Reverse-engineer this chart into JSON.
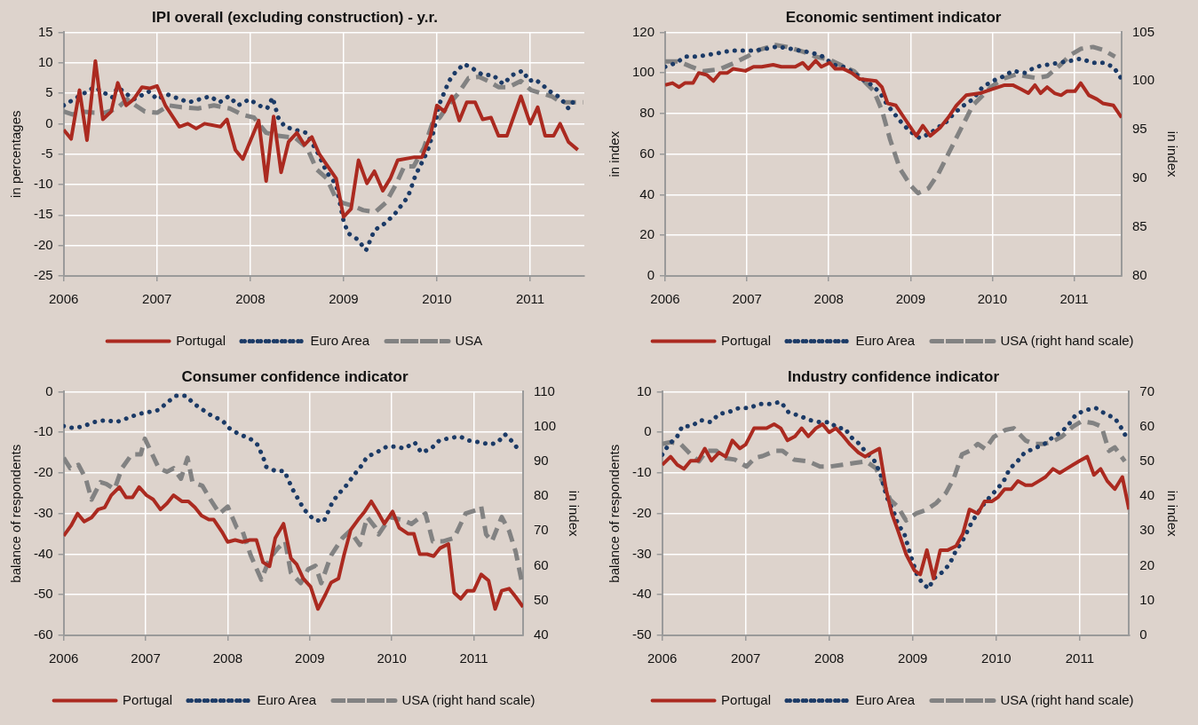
{
  "chart_data": [
    {
      "type": "line",
      "title": "IPI overall (excluding construction) - y.r.",
      "ylabel": "in percentages",
      "xlim": [
        2006,
        2011.58
      ],
      "xticks": [
        2006,
        2007,
        2008,
        2009,
        2010,
        2011
      ],
      "ylim": [
        -25,
        15
      ],
      "yticks": [
        -25,
        -20,
        -15,
        -10,
        -5,
        0,
        5,
        10,
        15
      ],
      "grid": true,
      "legend": "bottom",
      "series": [
        {
          "name": "Portugal",
          "color": "#ab2a20",
          "line_style": "solid",
          "x": [
            2006.0,
            2006.08,
            2006.17,
            2006.25,
            2006.34,
            2006.42,
            2006.51,
            2006.58,
            2006.67,
            2006.75,
            2006.84,
            2006.92,
            2007.0,
            2007.09,
            2007.24,
            2007.33,
            2007.42,
            2007.51,
            2007.68,
            2007.75,
            2007.84,
            2007.92,
            2008.09,
            2008.17,
            2008.25,
            2008.33,
            2008.41,
            2008.5,
            2008.58,
            2008.66,
            2008.74,
            2008.83,
            2008.92,
            2009.0,
            2009.08,
            2009.16,
            2009.25,
            2009.33,
            2009.42,
            2009.5,
            2009.58,
            2009.76,
            2009.84,
            2009.93,
            2010.0,
            2010.08,
            2010.16,
            2010.24,
            2010.32,
            2010.41,
            2010.49,
            2010.58,
            2010.66,
            2010.75,
            2010.9,
            2011.0,
            2011.08,
            2011.16,
            2011.25,
            2011.32,
            2011.41,
            2011.51
          ],
          "values": [
            -1,
            -2.5,
            5.5,
            -2.7,
            10.3,
            0.7,
            2,
            6.7,
            3,
            4,
            6,
            5.8,
            6.2,
            3,
            -0.5,
            0,
            -0.8,
            0,
            -0.5,
            0.7,
            -4.3,
            -5.8,
            0.5,
            -9.4,
            1.2,
            -8,
            -3,
            -1.5,
            -3.5,
            -2.2,
            -5,
            -7,
            -9,
            -15.3,
            -14,
            -6,
            -9.8,
            -7.8,
            -11,
            -9,
            -6,
            -5.5,
            -5.5,
            -2,
            3,
            2,
            4.5,
            0.5,
            3.5,
            3.5,
            0.7,
            1,
            -2,
            -2,
            4.5,
            0,
            2.7,
            -2,
            -2,
            0,
            -3,
            -4.3
          ]
        },
        {
          "name": "Euro Area",
          "color": "#1b3a66",
          "line_style": "dotted",
          "x": [
            2006.0,
            2006.33,
            2006.52,
            2006.58,
            2006.75,
            2006.92,
            2007.0,
            2007.11,
            2007.34,
            2007.57,
            2007.67,
            2007.77,
            2007.87,
            2007.99,
            2008.09,
            2008.18,
            2008.24,
            2008.3,
            2008.37,
            2008.48,
            2008.6,
            2008.73,
            2008.82,
            2008.92,
            2009.0,
            2009.05,
            2009.15,
            2009.24,
            2009.33,
            2009.43,
            2009.54,
            2009.69,
            2009.77,
            2009.9,
            2009.97,
            2010.02,
            2010.13,
            2010.2,
            2010.29,
            2010.39,
            2010.49,
            2010.6,
            2010.71,
            2010.81,
            2010.92,
            2010.99,
            2011.05,
            2011.12,
            2011.21,
            2011.32,
            2011.41,
            2011.48
          ],
          "values": [
            3,
            6,
            4.3,
            6,
            4,
            5.3,
            4,
            4.8,
            3.5,
            4.5,
            3.5,
            4.5,
            3,
            4,
            3,
            2.5,
            4.3,
            1,
            -0.5,
            -1,
            -1.5,
            -5,
            -8,
            -10,
            -16,
            -18,
            -19,
            -20.8,
            -17.5,
            -16.5,
            -15,
            -12,
            -8.5,
            -4.5,
            -1,
            3,
            7,
            8.5,
            9.8,
            9,
            8,
            8,
            6.5,
            8,
            8.7,
            7,
            7.3,
            6.5,
            5.3,
            4.3,
            2.5,
            4
          ]
        },
        {
          "name": "USA",
          "color": "#828282",
          "line_style": "dashed",
          "x": [
            2006.0,
            2006.1,
            2006.18,
            2006.33,
            2006.44,
            2006.57,
            2006.68,
            2006.77,
            2006.87,
            2007.0,
            2007.13,
            2007.26,
            2007.44,
            2007.61,
            2007.78,
            2007.91,
            2008.04,
            2008.17,
            2008.3,
            2008.48,
            2008.61,
            2008.71,
            2008.82,
            2008.91,
            2008.99,
            2009.1,
            2009.21,
            2009.34,
            2009.45,
            2009.56,
            2009.65,
            2009.75,
            2009.86,
            2009.95,
            2010.03,
            2010.12,
            2010.23,
            2010.34,
            2010.45,
            2010.55,
            2010.66,
            2010.77,
            2010.9,
            2011.01,
            2011.12,
            2011.23,
            2011.33,
            2011.46,
            2011.57
          ],
          "values": [
            2,
            1.5,
            2,
            1.8,
            1.8,
            2.5,
            4,
            3,
            2,
            1.8,
            3,
            2.7,
            2.5,
            3,
            2.5,
            1.5,
            1,
            -1.5,
            -2,
            -2.3,
            -4,
            -7.5,
            -9,
            -12,
            -13,
            -13.5,
            -14.2,
            -14.5,
            -13,
            -10,
            -7,
            -7,
            -4,
            0,
            1,
            3,
            5,
            7.5,
            7.7,
            7,
            6,
            6,
            7,
            5.5,
            5,
            4.5,
            3.5,
            3.5,
            3.5
          ]
        }
      ]
    },
    {
      "type": "line",
      "title": "Economic sentiment indicator",
      "ylabel": "in index",
      "y2label": "in index",
      "xlim": [
        2006,
        2011.58
      ],
      "xticks": [
        2006,
        2007,
        2008,
        2009,
        2010,
        2011
      ],
      "ylim": [
        0,
        120
      ],
      "yticks": [
        0,
        20,
        40,
        60,
        80,
        100,
        120
      ],
      "y2lim": [
        80,
        105
      ],
      "y2ticks": [
        80,
        85,
        90,
        95,
        100,
        105
      ],
      "grid": true,
      "legend": "bottom",
      "series": [
        {
          "name": "Portugal",
          "color": "#ab2a20",
          "line_style": "solid",
          "x": [
            2006.0,
            2006.09,
            2006.17,
            2006.24,
            2006.34,
            2006.41,
            2006.51,
            2006.59,
            2006.67,
            2006.76,
            2006.83,
            2006.98,
            2007.08,
            2007.18,
            2007.32,
            2007.42,
            2007.59,
            2007.68,
            2007.75,
            2007.84,
            2007.91,
            2008.01,
            2008.08,
            2008.18,
            2008.28,
            2008.38,
            2008.58,
            2008.65,
            2008.72,
            2008.82,
            2008.92,
            2009.07,
            2009.15,
            2009.24,
            2009.36,
            2009.46,
            2009.56,
            2009.68,
            2009.85,
            2010.0,
            2010.15,
            2010.25,
            2010.35,
            2010.44,
            2010.52,
            2010.59,
            2010.67,
            2010.76,
            2010.84,
            2010.91,
            2011.01,
            2011.08,
            2011.18,
            2011.28,
            2011.35,
            2011.48,
            2011.58
          ],
          "values": [
            94,
            95,
            93,
            95,
            95,
            100,
            99,
            96,
            100,
            100,
            102,
            101,
            103,
            103,
            104,
            103,
            103,
            105,
            102,
            106,
            103,
            105,
            102,
            102,
            100,
            97,
            96,
            93,
            85,
            84,
            78,
            69,
            74,
            69,
            73,
            78,
            84,
            89,
            90,
            92,
            94,
            94,
            92,
            90,
            94,
            90,
            93,
            90,
            89,
            91,
            91,
            95,
            89,
            87,
            85,
            84,
            78
          ]
        },
        {
          "name": "Euro Area",
          "color": "#1b3a66",
          "line_style": "dotted",
          "x": [
            2006.0,
            2006.14,
            2006.24,
            2006.39,
            2006.54,
            2006.68,
            2006.81,
            2006.95,
            2007.1,
            2007.25,
            2007.37,
            2007.52,
            2007.64,
            2007.79,
            2007.93,
            2008.06,
            2008.18,
            2008.31,
            2008.4,
            2008.53,
            2008.63,
            2008.72,
            2008.82,
            2008.9,
            2009.0,
            2009.11,
            2009.23,
            2009.33,
            2009.44,
            2009.53,
            2009.65,
            2009.76,
            2009.88,
            2010.0,
            2010.12,
            2010.25,
            2010.4,
            2010.53,
            2010.67,
            2010.81,
            2010.96,
            2011.08,
            2011.23,
            2011.35,
            2011.48,
            2011.58
          ],
          "values": [
            103,
            105,
            108,
            108,
            109,
            110,
            111,
            111,
            111,
            112,
            113,
            112,
            111,
            110,
            108,
            104,
            103,
            100,
            97,
            94,
            90,
            84,
            79,
            75,
            71,
            68,
            70,
            73,
            76,
            80,
            84,
            87,
            93,
            96,
            98,
            101,
            100,
            103,
            104,
            105,
            106,
            107,
            105,
            105,
            103,
            97
          ]
        },
        {
          "name": "USA (right hand scale)",
          "color": "#828282",
          "line_style": "dashed",
          "axis": "y2",
          "x": [
            2006.0,
            2006.17,
            2006.31,
            2006.46,
            2006.66,
            2006.83,
            2007.0,
            2007.15,
            2007.35,
            2007.49,
            2007.69,
            2007.84,
            2008.01,
            2008.18,
            2008.31,
            2008.43,
            2008.55,
            2008.65,
            2008.75,
            2008.87,
            2009.0,
            2009.09,
            2009.22,
            2009.34,
            2009.46,
            2009.61,
            2009.76,
            2009.88,
            2010.0,
            2010.15,
            2010.3,
            2010.4,
            2010.54,
            2010.67,
            2010.81,
            2010.96,
            2011.08,
            2011.23,
            2011.35,
            2011.5
          ],
          "values": [
            102,
            102,
            101.5,
            101,
            101.2,
            101.8,
            102.5,
            103.2,
            103.7,
            103.5,
            103,
            102.5,
            102.2,
            101.5,
            101,
            100,
            99,
            97,
            94,
            91,
            89.3,
            88.5,
            89,
            90.5,
            92.5,
            95,
            97.5,
            98.5,
            99.5,
            100.3,
            100.7,
            100.5,
            100.3,
            100.5,
            101.5,
            102.7,
            103.3,
            103.5,
            103.2,
            102.5
          ]
        }
      ]
    },
    {
      "type": "line",
      "title": "Consumer confidence indicator",
      "ylabel": "balance of respondents",
      "y2label": "in index",
      "xlim": [
        2006,
        2011.6
      ],
      "xticks": [
        2006,
        2007,
        2008,
        2009,
        2010,
        2011
      ],
      "ylim": [
        -60,
        0
      ],
      "yticks": [
        -60,
        -50,
        -40,
        -30,
        -20,
        -10,
        0
      ],
      "y2lim": [
        40,
        110
      ],
      "y2ticks": [
        40,
        50,
        60,
        70,
        80,
        90,
        100,
        110
      ],
      "grid": true,
      "legend": "bottom",
      "series": [
        {
          "name": "Portugal",
          "color": "#ab2a20",
          "line_style": "solid",
          "x": [
            2006.0,
            2006.09,
            2006.17,
            2006.25,
            2006.34,
            2006.42,
            2006.5,
            2006.58,
            2006.68,
            2006.76,
            2006.84,
            2006.92,
            2007.01,
            2007.09,
            2007.18,
            2007.26,
            2007.34,
            2007.44,
            2007.52,
            2007.6,
            2007.68,
            2007.77,
            2007.83,
            2007.93,
            2008.0,
            2008.09,
            2008.18,
            2008.27,
            2008.35,
            2008.43,
            2008.51,
            2008.58,
            2008.68,
            2008.77,
            2008.84,
            2008.92,
            2009.01,
            2009.1,
            2009.19,
            2009.26,
            2009.35,
            2009.42,
            2009.5,
            2009.59,
            2009.67,
            2009.75,
            2009.84,
            2009.91,
            2010.01,
            2010.09,
            2010.2,
            2010.27,
            2010.34,
            2010.43,
            2010.51,
            2010.59,
            2010.69,
            2010.76,
            2010.84,
            2010.92,
            2011.0,
            2011.09,
            2011.18,
            2011.26,
            2011.34,
            2011.43,
            2011.51,
            2011.6
          ],
          "values": [
            -35.5,
            -33,
            -30,
            -32,
            -31,
            -29,
            -28.5,
            -25.5,
            -23.5,
            -26,
            -26,
            -23.5,
            -25.5,
            -26.5,
            -29,
            -27.5,
            -25.5,
            -27,
            -27,
            -28.5,
            -30.5,
            -31.5,
            -31.5,
            -34.5,
            -37,
            -36.5,
            -37,
            -36.5,
            -36.5,
            -42,
            -43,
            -36,
            -32.5,
            -41,
            -42.5,
            -46,
            -48,
            -53.5,
            -50,
            -47,
            -46,
            -40,
            -34,
            -31.5,
            -29.5,
            -27,
            -30,
            -32.5,
            -29.5,
            -33.5,
            -35,
            -35,
            -40,
            -40,
            -40.5,
            -38.5,
            -37.5,
            -49.5,
            -51,
            -49,
            -49,
            -45,
            -46.5,
            -53.5,
            -49,
            -48.5,
            -50.5,
            -53
          ]
        },
        {
          "name": "Euro Area",
          "color": "#1b3a66",
          "line_style": "dotted",
          "x": [
            2006.0,
            2006.13,
            2006.24,
            2006.37,
            2006.51,
            2006.64,
            2006.78,
            2006.91,
            2007.04,
            2007.16,
            2007.27,
            2007.37,
            2007.49,
            2007.59,
            2007.7,
            2007.81,
            2007.93,
            2008.02,
            2008.14,
            2008.27,
            2008.36,
            2008.43,
            2008.47,
            2008.58,
            2008.69,
            2008.79,
            2008.86,
            2008.93,
            2009.05,
            2009.17,
            2009.28,
            2009.36,
            2009.45,
            2009.54,
            2009.62,
            2009.7,
            2009.81,
            2009.94,
            2010.06,
            2010.15,
            2010.28,
            2010.36,
            2010.48,
            2010.58,
            2010.69,
            2010.83,
            2010.93,
            2011.08,
            2011.2,
            2011.29,
            2011.38,
            2011.48,
            2011.55
          ],
          "values": [
            -8.5,
            -9,
            -8.5,
            -7.5,
            -7,
            -7.5,
            -6.5,
            -5.5,
            -5,
            -4.5,
            -2.5,
            -1,
            -1,
            -3,
            -4.5,
            -6,
            -7,
            -9,
            -10.5,
            -11.5,
            -13,
            -16,
            -18.5,
            -19.5,
            -19.5,
            -24,
            -26.5,
            -29,
            -31.5,
            -32,
            -27,
            -25,
            -23,
            -20.5,
            -18.5,
            -16,
            -15,
            -13.5,
            -13.5,
            -14,
            -12.5,
            -15,
            -14,
            -12,
            -11.5,
            -11,
            -12,
            -12.5,
            -13,
            -12.5,
            -10.5,
            -12.5,
            -14.5
          ]
        },
        {
          "name": "USA (right hand scale)",
          "color": "#828282",
          "line_style": "dashed",
          "axis": "y2",
          "x": [
            2006.0,
            2006.08,
            2006.18,
            2006.27,
            2006.34,
            2006.45,
            2006.52,
            2006.62,
            2006.71,
            2006.83,
            2006.94,
            2006.99,
            2007.06,
            2007.16,
            2007.26,
            2007.34,
            2007.43,
            2007.51,
            2007.57,
            2007.69,
            2007.79,
            2007.9,
            2008.0,
            2008.11,
            2008.18,
            2008.28,
            2008.41,
            2008.51,
            2008.61,
            2008.7,
            2008.77,
            2008.89,
            2008.98,
            2009.07,
            2009.14,
            2009.26,
            2009.4,
            2009.49,
            2009.61,
            2009.7,
            2009.8,
            2009.84,
            2009.98,
            2010.15,
            2010.24,
            2010.41,
            2010.5,
            2010.62,
            2010.76,
            2010.9,
            2011.03,
            2011.09,
            2011.15,
            2011.22,
            2011.34,
            2011.43,
            2011.51,
            2011.58
          ],
          "values": [
            91,
            88,
            89,
            85,
            79,
            84,
            83.5,
            82,
            88,
            92,
            92,
            96.5,
            93,
            88,
            87,
            88,
            85,
            91,
            84,
            83,
            79,
            75,
            77,
            71,
            70,
            63,
            56,
            62,
            65,
            67,
            58,
            55,
            59,
            60,
            55,
            63,
            68,
            70,
            66,
            74,
            71,
            69,
            74,
            73,
            72,
            75,
            67,
            67,
            68,
            75,
            76,
            77,
            69,
            67,
            74,
            70,
            64,
            56
          ]
        }
      ]
    },
    {
      "type": "line",
      "title": "Industry confidence indicator",
      "ylabel": "balance of respondents",
      "y2label": "in index",
      "xlim": [
        2006,
        2011.59
      ],
      "xticks": [
        2006,
        2007,
        2008,
        2009,
        2010,
        2011
      ],
      "ylim": [
        -50,
        10
      ],
      "yticks": [
        -50,
        -40,
        -30,
        -20,
        -10,
        0,
        10
      ],
      "y2lim": [
        0,
        70
      ],
      "y2ticks": [
        0,
        10,
        20,
        30,
        40,
        50,
        60,
        70
      ],
      "grid": true,
      "legend": "bottom",
      "series": [
        {
          "name": "Portugal",
          "color": "#ab2a20",
          "line_style": "solid",
          "x": [
            2006.0,
            2006.1,
            2006.18,
            2006.26,
            2006.34,
            2006.43,
            2006.51,
            2006.59,
            2006.68,
            2006.76,
            2006.84,
            2006.93,
            2007.0,
            2007.1,
            2007.25,
            2007.34,
            2007.42,
            2007.5,
            2007.59,
            2007.67,
            2007.75,
            2007.84,
            2007.92,
            2008.0,
            2008.08,
            2008.17,
            2008.25,
            2008.35,
            2008.43,
            2008.51,
            2008.6,
            2008.68,
            2008.75,
            2008.82,
            2008.92,
            2009.02,
            2009.09,
            2009.17,
            2009.25,
            2009.33,
            2009.42,
            2009.52,
            2009.6,
            2009.68,
            2009.78,
            2009.86,
            2009.95,
            2010.02,
            2010.1,
            2010.18,
            2010.26,
            2010.35,
            2010.43,
            2010.51,
            2010.59,
            2010.68,
            2010.76,
            2010.84,
            2010.92,
            2011.0,
            2011.09,
            2011.17,
            2011.25,
            2011.33,
            2011.42,
            2011.51,
            2011.59
          ],
          "values": [
            -8,
            -6,
            -8,
            -9,
            -7,
            -7,
            -4,
            -7,
            -5,
            -6,
            -2,
            -4,
            -3,
            1,
            1,
            2,
            1,
            -2,
            -1,
            1,
            -1,
            1,
            2,
            0,
            1,
            -1,
            -3,
            -5,
            -6,
            -5,
            -4,
            -14,
            -20,
            -24,
            -30,
            -34,
            -35,
            -29,
            -36,
            -29,
            -29,
            -28,
            -25,
            -19,
            -20,
            -17,
            -17,
            -16,
            -14,
            -14,
            -12,
            -13,
            -13,
            -12,
            -11,
            -9,
            -10,
            -9,
            -8,
            -7,
            -6,
            -10.5,
            -9,
            -12,
            -14,
            -11,
            -19
          ]
        },
        {
          "name": "Euro Area",
          "color": "#1b3a66",
          "line_style": "dotted",
          "x": [
            2006.0,
            2006.08,
            2006.18,
            2006.24,
            2006.35,
            2006.46,
            2006.58,
            2006.68,
            2006.8,
            2006.92,
            2007.05,
            2007.16,
            2007.3,
            2007.42,
            2007.51,
            2007.65,
            2007.77,
            2007.89,
            2008.01,
            2008.1,
            2008.19,
            2008.25,
            2008.37,
            2008.44,
            2008.54,
            2008.61,
            2008.69,
            2008.78,
            2008.82,
            2008.9,
            2008.97,
            2009.05,
            2009.11,
            2009.19,
            2009.25,
            2009.35,
            2009.44,
            2009.52,
            2009.59,
            2009.71,
            2009.84,
            2009.92,
            2010.01,
            2010.09,
            2010.16,
            2010.26,
            2010.34,
            2010.45,
            2010.57,
            2010.69,
            2010.78,
            2010.87,
            2010.96,
            2011.08,
            2011.19,
            2011.31,
            2011.42,
            2011.5,
            2011.58
          ],
          "values": [
            -5.5,
            -3,
            -1,
            1.5,
            1.5,
            3,
            2.5,
            4.5,
            5,
            6,
            6,
            7,
            7,
            7.5,
            5,
            4,
            3,
            2.5,
            2.5,
            1,
            1,
            -1,
            -3,
            -5,
            -7,
            -10,
            -16,
            -20,
            -22.5,
            -25,
            -30,
            -35,
            -37,
            -38.5,
            -36,
            -34.5,
            -32.5,
            -29,
            -27,
            -22,
            -18,
            -16,
            -14,
            -12,
            -9,
            -7,
            -5,
            -4,
            -3,
            -1,
            0,
            2,
            4.5,
            5.5,
            6,
            4.5,
            3.5,
            1,
            -2
          ]
        },
        {
          "name": "USA (right hand scale)",
          "color": "#828282",
          "line_style": "dashed",
          "axis": "y2",
          "x": [
            2006.0,
            2006.1,
            2006.22,
            2006.34,
            2006.44,
            2006.53,
            2006.65,
            2006.73,
            2006.87,
            2007.01,
            2007.11,
            2007.2,
            2007.35,
            2007.44,
            2007.58,
            2007.75,
            2007.89,
            2008.01,
            2008.16,
            2008.3,
            2008.44,
            2008.56,
            2008.66,
            2008.73,
            2008.82,
            2008.92,
            2009.04,
            2009.16,
            2009.28,
            2009.4,
            2009.49,
            2009.59,
            2009.68,
            2009.78,
            2009.87,
            2009.97,
            2010.11,
            2010.21,
            2010.35,
            2010.45,
            2010.57,
            2010.66,
            2010.78,
            2010.92,
            2011.02,
            2011.16,
            2011.26,
            2011.35,
            2011.42,
            2011.54
          ],
          "values": [
            55,
            55.5,
            55,
            52,
            50,
            53,
            53,
            51,
            50.5,
            48.5,
            51,
            51.5,
            53,
            53,
            50.5,
            50,
            48.5,
            48.5,
            49,
            49.5,
            50,
            48,
            43,
            39,
            37,
            33,
            35,
            36,
            38,
            41,
            45,
            52,
            53,
            55,
            53.5,
            57,
            59,
            59.5,
            56,
            55,
            55,
            55.5,
            57,
            60,
            61.5,
            61,
            60,
            53,
            54,
            50
          ]
        }
      ]
    }
  ]
}
